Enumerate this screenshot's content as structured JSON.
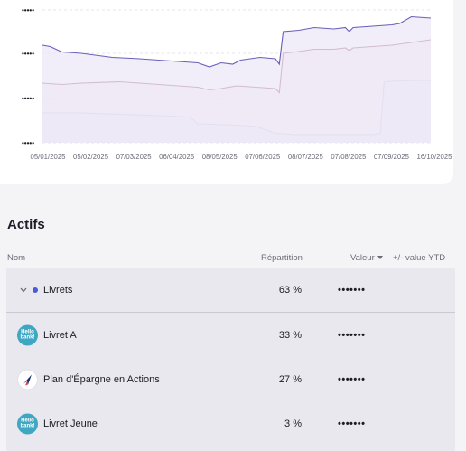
{
  "chart_data": {
    "type": "line",
    "x_tick_labels": [
      "05/01/2025",
      "05/02/2025",
      "07/03/2025",
      "06/04/2025",
      "08/05/2025",
      "07/06/2025",
      "08/07/2025",
      "07/08/2025",
      "07/09/2025",
      "16/10/2025"
    ],
    "y_tick_labels": [
      "•••••",
      "•••••",
      "•••••",
      "•••••"
    ],
    "grid": true,
    "legend": "none",
    "series": [
      {
        "color": "#6a5fb8",
        "fill": "#ece8f7",
        "points": [
          [
            0,
            0.72
          ],
          [
            0.02,
            0.71
          ],
          [
            0.05,
            0.67
          ],
          [
            0.1,
            0.66
          ],
          [
            0.18,
            0.63
          ],
          [
            0.25,
            0.62
          ],
          [
            0.3,
            0.61
          ],
          [
            0.35,
            0.6
          ],
          [
            0.4,
            0.59
          ],
          [
            0.43,
            0.56
          ],
          [
            0.46,
            0.59
          ],
          [
            0.49,
            0.58
          ],
          [
            0.51,
            0.61
          ],
          [
            0.56,
            0.63
          ],
          [
            0.6,
            0.62
          ],
          [
            0.61,
            0.58
          ],
          [
            0.62,
            0.82
          ],
          [
            0.66,
            0.83
          ],
          [
            0.7,
            0.85
          ],
          [
            0.75,
            0.84
          ],
          [
            0.78,
            0.85
          ],
          [
            0.79,
            0.82
          ],
          [
            0.8,
            0.85
          ],
          [
            0.85,
            0.86
          ],
          [
            0.9,
            0.87
          ],
          [
            0.92,
            0.88
          ],
          [
            0.95,
            0.93
          ],
          [
            1.0,
            0.92
          ]
        ]
      },
      {
        "color": "#8a3a5c",
        "fill": "#f2e8ee",
        "points": [
          [
            0,
            0.44
          ],
          [
            0.05,
            0.43
          ],
          [
            0.1,
            0.44
          ],
          [
            0.2,
            0.45
          ],
          [
            0.3,
            0.43
          ],
          [
            0.4,
            0.41
          ],
          [
            0.43,
            0.39
          ],
          [
            0.46,
            0.4
          ],
          [
            0.5,
            0.42
          ],
          [
            0.55,
            0.41
          ],
          [
            0.6,
            0.4
          ],
          [
            0.61,
            0.37
          ],
          [
            0.62,
            0.66
          ],
          [
            0.65,
            0.67
          ],
          [
            0.7,
            0.69
          ],
          [
            0.75,
            0.69
          ],
          [
            0.78,
            0.7
          ],
          [
            0.79,
            0.68
          ],
          [
            0.8,
            0.7
          ],
          [
            0.85,
            0.71
          ],
          [
            0.9,
            0.72
          ],
          [
            0.95,
            0.74
          ],
          [
            1.0,
            0.76
          ]
        ]
      },
      {
        "color": "#3f58b0",
        "fill": "#e2e8f7",
        "points": [
          [
            0,
            0.22
          ],
          [
            0.1,
            0.22
          ],
          [
            0.2,
            0.21
          ],
          [
            0.3,
            0.2
          ],
          [
            0.38,
            0.19
          ],
          [
            0.4,
            0.14
          ],
          [
            0.5,
            0.13
          ],
          [
            0.55,
            0.12
          ],
          [
            0.6,
            0.07
          ],
          [
            0.65,
            0.06
          ],
          [
            0.75,
            0.06
          ],
          [
            0.85,
            0.06
          ],
          [
            0.87,
            0.07
          ],
          [
            0.88,
            0.45
          ],
          [
            0.95,
            0.46
          ],
          [
            1.0,
            0.46
          ]
        ]
      }
    ]
  },
  "section": {
    "title": "Actifs"
  },
  "table": {
    "headers": {
      "name": "Nom",
      "allocation": "Répartition",
      "value": "Valeur",
      "ytd": "+/- value YTD"
    },
    "group": {
      "label": "Livrets",
      "pct": "63 %",
      "value": "•••••••",
      "dot_color": "#4b5bd6"
    },
    "rows": [
      {
        "label": "Livret A",
        "pct": "33 %",
        "value": "•••••••",
        "logo_text": "Hello bank!"
      },
      {
        "label": "Plan d'Épargne en Actions",
        "pct": "27 %",
        "value": "•••••••",
        "logo_text": ""
      },
      {
        "label": "Livret Jeune",
        "pct": "3 %",
        "value": "•••••••",
        "logo_text": "Hello bank!"
      }
    ]
  }
}
